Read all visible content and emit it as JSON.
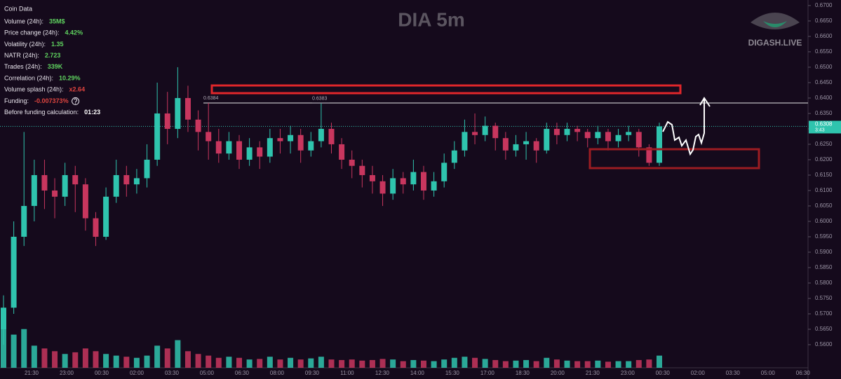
{
  "chart_data": {
    "type": "candlestick",
    "title": "DIA 5m",
    "brand": "DIGASH.LIVE",
    "up_color": "#2fc4ae",
    "down_color": "#c8365e",
    "time_labels": [
      "21:30",
      "23:00",
      "00:30",
      "02:00",
      "03:30",
      "05:00",
      "06:30",
      "08:00",
      "09:30",
      "11:00",
      "12:30",
      "14:00",
      "15:30",
      "17:00",
      "18:30",
      "20:00",
      "21:30",
      "23:00",
      "00:30",
      "02:00",
      "03:30",
      "05:00",
      "06:30"
    ],
    "ylim": [
      0.5525,
      0.6718
    ],
    "yticks": [
      {
        "value": 0.56,
        "label": "0.5600"
      },
      {
        "value": 0.565,
        "label": "0.5650"
      },
      {
        "value": 0.57,
        "label": "0.5700"
      },
      {
        "value": 0.575,
        "label": "0.5750"
      },
      {
        "value": 0.58,
        "label": "0.5800"
      },
      {
        "value": 0.585,
        "label": "0.5850"
      },
      {
        "value": 0.59,
        "label": "0.5900"
      },
      {
        "value": 0.595,
        "label": "0.5950"
      },
      {
        "value": 0.6,
        "label": "0.6000"
      },
      {
        "value": 0.605,
        "label": "0.6050"
      },
      {
        "value": 0.61,
        "label": "0.6100"
      },
      {
        "value": 0.615,
        "label": "0.6150"
      },
      {
        "value": 0.62,
        "label": "0.6200"
      },
      {
        "value": 0.625,
        "label": "0.6250"
      },
      {
        "value": 0.63,
        "label": "0.6300"
      },
      {
        "value": 0.635,
        "label": "0.6350"
      },
      {
        "value": 0.64,
        "label": "0.6400"
      },
      {
        "value": 0.645,
        "label": "0.6450"
      },
      {
        "value": 0.65,
        "label": "0.6500"
      },
      {
        "value": 0.655,
        "label": "0.6550"
      },
      {
        "value": 0.66,
        "label": "0.6600"
      },
      {
        "value": 0.665,
        "label": "0.6650"
      },
      {
        "value": 0.67,
        "label": "0.6700"
      }
    ],
    "levels": [
      0.6384,
      0.6383
    ],
    "last_price": 0.6308,
    "countdown": "3:43",
    "open": [
      0.565,
      0.572,
      0.595,
      0.605,
      0.615,
      0.61,
      0.608,
      0.615,
      0.612,
      0.601,
      0.595,
      0.608,
      0.615,
      0.612,
      0.614,
      0.62,
      0.635,
      0.63,
      0.64,
      0.633,
      0.629,
      0.626,
      0.622,
      0.626,
      0.62,
      0.624,
      0.621,
      0.627,
      0.626,
      0.628,
      0.623,
      0.626,
      0.63,
      0.625,
      0.62,
      0.618,
      0.615,
      0.613,
      0.609,
      0.614,
      0.612,
      0.616,
      0.61,
      0.613,
      0.619,
      0.623,
      0.629,
      0.628,
      0.631,
      0.627,
      0.623,
      0.625,
      0.626,
      0.623,
      0.63,
      0.628,
      0.63,
      0.629,
      0.627,
      0.629,
      0.626,
      0.628,
      0.629,
      0.624,
      0.619
    ],
    "high": [
      0.576,
      0.6,
      0.629,
      0.62,
      0.62,
      0.614,
      0.619,
      0.618,
      0.614,
      0.603,
      0.611,
      0.62,
      0.618,
      0.617,
      0.625,
      0.645,
      0.642,
      0.65,
      0.644,
      0.636,
      0.6384,
      0.63,
      0.629,
      0.628,
      0.627,
      0.626,
      0.63,
      0.63,
      0.631,
      0.63,
      0.629,
      0.6383,
      0.632,
      0.627,
      0.623,
      0.62,
      0.618,
      0.615,
      0.617,
      0.616,
      0.62,
      0.618,
      0.616,
      0.622,
      0.626,
      0.633,
      0.635,
      0.634,
      0.632,
      0.629,
      0.628,
      0.629,
      0.627,
      0.632,
      0.632,
      0.632,
      0.631,
      0.63,
      0.631,
      0.63,
      0.63,
      0.631,
      0.63,
      0.625,
      0.632
    ],
    "low": [
      0.56,
      0.57,
      0.592,
      0.6,
      0.604,
      0.601,
      0.605,
      0.603,
      0.597,
      0.592,
      0.594,
      0.606,
      0.608,
      0.609,
      0.611,
      0.618,
      0.625,
      0.627,
      0.629,
      0.623,
      0.62,
      0.619,
      0.62,
      0.617,
      0.618,
      0.617,
      0.619,
      0.622,
      0.622,
      0.619,
      0.621,
      0.624,
      0.622,
      0.617,
      0.614,
      0.611,
      0.609,
      0.605,
      0.607,
      0.609,
      0.61,
      0.607,
      0.608,
      0.611,
      0.617,
      0.621,
      0.625,
      0.626,
      0.623,
      0.62,
      0.621,
      0.62,
      0.619,
      0.622,
      0.625,
      0.626,
      0.626,
      0.624,
      0.625,
      0.623,
      0.624,
      0.626,
      0.621,
      0.618,
      0.618
    ],
    "close": [
      0.572,
      0.595,
      0.605,
      0.615,
      0.61,
      0.608,
      0.615,
      0.612,
      0.601,
      0.595,
      0.608,
      0.615,
      0.612,
      0.614,
      0.62,
      0.635,
      0.63,
      0.64,
      0.633,
      0.629,
      0.626,
      0.622,
      0.626,
      0.62,
      0.624,
      0.621,
      0.627,
      0.626,
      0.628,
      0.623,
      0.626,
      0.63,
      0.625,
      0.62,
      0.618,
      0.615,
      0.613,
      0.609,
      0.614,
      0.612,
      0.616,
      0.61,
      0.613,
      0.619,
      0.623,
      0.629,
      0.628,
      0.631,
      0.627,
      0.623,
      0.625,
      0.626,
      0.623,
      0.63,
      0.628,
      0.63,
      0.629,
      0.627,
      0.629,
      0.626,
      0.628,
      0.629,
      0.624,
      0.619,
      0.6308
    ],
    "volume": [
      95,
      60,
      70,
      40,
      35,
      30,
      25,
      28,
      35,
      30,
      25,
      22,
      20,
      18,
      22,
      40,
      35,
      50,
      30,
      25,
      22,
      18,
      20,
      18,
      15,
      16,
      20,
      15,
      18,
      15,
      17,
      20,
      15,
      14,
      15,
      13,
      14,
      16,
      15,
      12,
      14,
      13,
      12,
      15,
      18,
      20,
      18,
      16,
      14,
      12,
      13,
      14,
      12,
      18,
      15,
      13,
      12,
      12,
      13,
      11,
      12,
      12,
      14,
      15,
      22
    ]
  },
  "coin_data": {
    "title": "Coin Data",
    "rows": [
      {
        "label": "Volume (24h):",
        "value": "35M$",
        "color": "#5fd35f"
      },
      {
        "label": "Price change (24h):",
        "value": "4.42%",
        "color": "#5fd35f"
      },
      {
        "label": "Volatility (24h):",
        "value": "1.35",
        "color": "#5fd35f"
      },
      {
        "label": "NATR (24h):",
        "value": "2.723",
        "color": "#5fd35f"
      },
      {
        "label": "Trades (24h):",
        "value": "339K",
        "color": "#5fd35f"
      },
      {
        "label": "Correlation (24h):",
        "value": "10.29%",
        "color": "#5fd35f"
      },
      {
        "label": "Volume splash (24h):",
        "value": "x2.64",
        "color": "#e0453f"
      },
      {
        "label": "Funding:",
        "value": "-0.007373%",
        "color": "#e0453f"
      },
      {
        "label": "Before funding calculation:",
        "value": "01:23",
        "color": "#ffffff"
      }
    ]
  }
}
